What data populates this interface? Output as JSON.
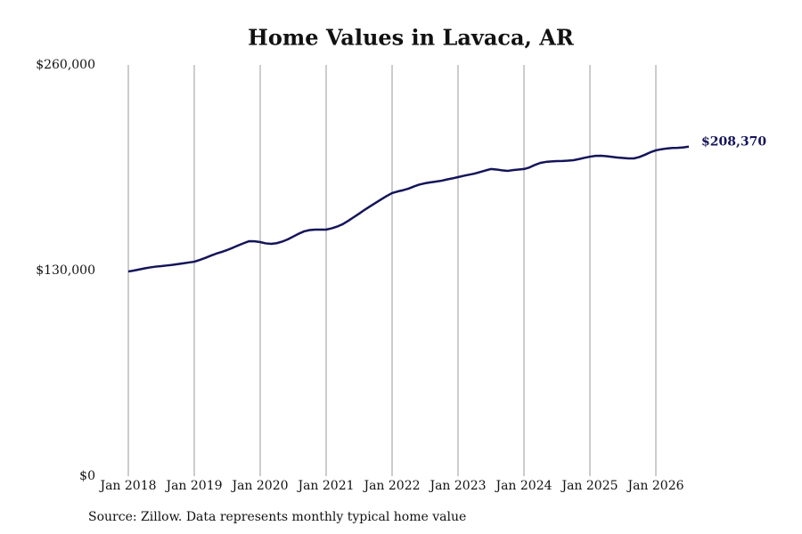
{
  "chart_data": {
    "type": "line",
    "title": "Home Values in Lavaca, AR",
    "source": "Source: Zillow. Data represents monthly typical home value",
    "x": [
      "2018-01",
      "2018-02",
      "2018-03",
      "2018-04",
      "2018-05",
      "2018-06",
      "2018-07",
      "2018-08",
      "2018-09",
      "2018-10",
      "2018-11",
      "2018-12",
      "2019-01",
      "2019-02",
      "2019-03",
      "2019-04",
      "2019-05",
      "2019-06",
      "2019-07",
      "2019-08",
      "2019-09",
      "2019-10",
      "2019-11",
      "2019-12",
      "2020-01",
      "2020-02",
      "2020-03",
      "2020-04",
      "2020-05",
      "2020-06",
      "2020-07",
      "2020-08",
      "2020-09",
      "2020-10",
      "2020-11",
      "2020-12",
      "2021-01",
      "2021-02",
      "2021-03",
      "2021-04",
      "2021-05",
      "2021-06",
      "2021-07",
      "2021-08",
      "2021-09",
      "2021-10",
      "2021-11",
      "2021-12",
      "2022-01",
      "2022-02",
      "2022-03",
      "2022-04",
      "2022-05",
      "2022-06",
      "2022-07",
      "2022-08",
      "2022-09",
      "2022-10",
      "2022-11",
      "2022-12",
      "2023-01",
      "2023-02",
      "2023-03",
      "2023-04",
      "2023-05",
      "2023-06",
      "2023-07",
      "2023-08",
      "2023-09",
      "2023-10",
      "2023-11",
      "2023-12",
      "2024-01",
      "2024-02",
      "2024-03",
      "2024-04",
      "2024-05",
      "2024-06",
      "2024-07",
      "2024-08",
      "2024-09",
      "2024-10",
      "2024-11",
      "2024-12",
      "2025-01",
      "2025-02",
      "2025-03",
      "2025-04",
      "2025-05",
      "2025-06",
      "2025-07",
      "2025-08",
      "2025-09",
      "2025-10",
      "2025-11",
      "2025-12",
      "2026-01",
      "2026-02",
      "2026-03",
      "2026-04",
      "2026-05",
      "2026-06",
      "2026-07"
    ],
    "series": [
      {
        "name": "Home value",
        "color": "#14145a",
        "values": [
          129400,
          130000,
          130700,
          131400,
          132000,
          132500,
          132800,
          133200,
          133600,
          134100,
          134600,
          135100,
          135600,
          136700,
          138000,
          139400,
          140700,
          141800,
          143000,
          144400,
          145900,
          147300,
          148600,
          148500,
          148000,
          147200,
          146900,
          147300,
          148300,
          149700,
          151500,
          153300,
          154800,
          155600,
          155900,
          155900,
          155900,
          156700,
          157800,
          159300,
          161400,
          163700,
          166000,
          168400,
          170600,
          172800,
          175000,
          177100,
          179000,
          180000,
          180800,
          181800,
          183200,
          184400,
          185200,
          185800,
          186300,
          186800,
          187600,
          188300,
          189100,
          189900,
          190600,
          191300,
          192300,
          193300,
          194200,
          193900,
          193400,
          193000,
          193500,
          193900,
          194200,
          195200,
          196800,
          198100,
          198700,
          199000,
          199200,
          199300,
          199500,
          199800,
          200500,
          201300,
          202000,
          202500,
          202600,
          202300,
          201900,
          201500,
          201200,
          200900,
          200900,
          201800,
          203200,
          204800,
          206000,
          206700,
          207200,
          207500,
          207600,
          207900,
          208370
        ],
        "value_labels": [
          null,
          null,
          null,
          null,
          null,
          null,
          null,
          null,
          null,
          null,
          null,
          null,
          null,
          null,
          null,
          null,
          null,
          null,
          null,
          null,
          null,
          null,
          null,
          null,
          null,
          null,
          null,
          null,
          null,
          null,
          null,
          null,
          null,
          null,
          null,
          null,
          null,
          null,
          null,
          null,
          null,
          null,
          null,
          null,
          null,
          null,
          null,
          null,
          null,
          null,
          null,
          null,
          null,
          null,
          null,
          null,
          null,
          null,
          null,
          null,
          null,
          null,
          null,
          null,
          null,
          null,
          null,
          null,
          null,
          null,
          null,
          null,
          null,
          null,
          null,
          null,
          null,
          null,
          null,
          null,
          null,
          null,
          null,
          null,
          null,
          null,
          null,
          null,
          null,
          null,
          null,
          null,
          null,
          null,
          null,
          null,
          null,
          null,
          null,
          null,
          null,
          null,
          "$208,370"
        ]
      }
    ],
    "xticks": [
      {
        "value": "2018-01",
        "label": "Jan 2018"
      },
      {
        "value": "2019-01",
        "label": "Jan 2019"
      },
      {
        "value": "2020-01",
        "label": "Jan 2020"
      },
      {
        "value": "2021-01",
        "label": "Jan 2021"
      },
      {
        "value": "2022-01",
        "label": "Jan 2022"
      },
      {
        "value": "2023-01",
        "label": "Jan 2023"
      },
      {
        "value": "2024-01",
        "label": "Jan 2024"
      },
      {
        "value": "2025-01",
        "label": "Jan 2025"
      },
      {
        "value": "2026-01",
        "label": "Jan 2026"
      }
    ],
    "ylim": [
      0,
      260000
    ],
    "yticks": [
      {
        "value": 0,
        "label": "$0"
      },
      {
        "value": 130000,
        "label": "$130,000"
      },
      {
        "value": 260000,
        "label": "$260,000"
      }
    ],
    "grid": "x"
  }
}
